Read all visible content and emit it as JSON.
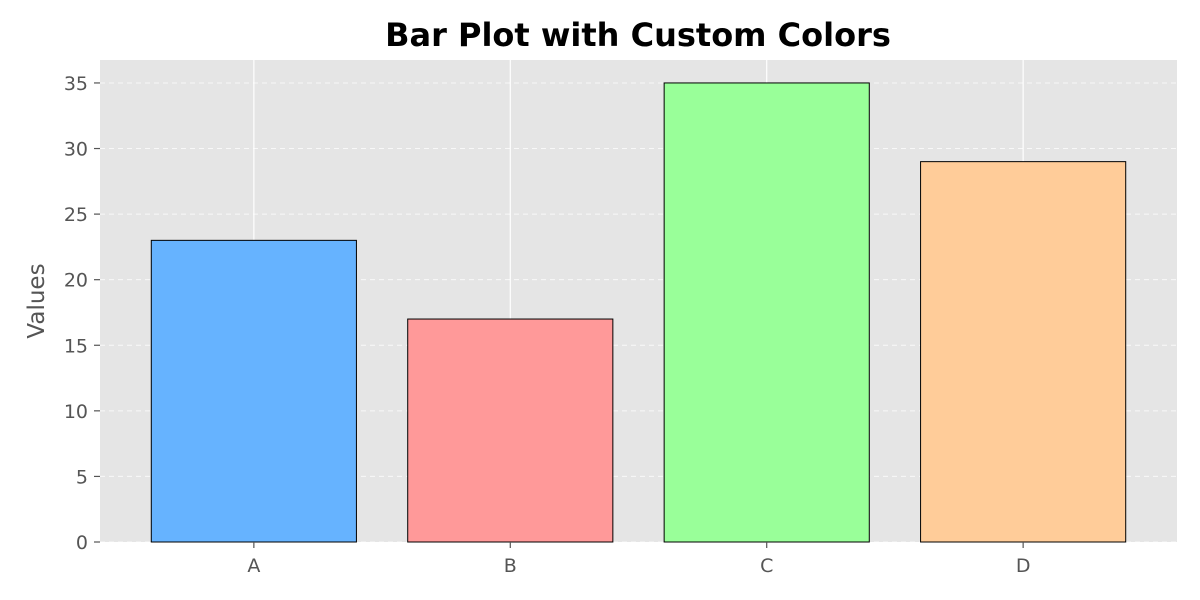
{
  "chart_data": {
    "type": "bar",
    "title": "Bar Plot with Custom Colors",
    "xlabel": "",
    "ylabel": "Values",
    "categories": [
      "A",
      "B",
      "C",
      "D"
    ],
    "values": [
      23,
      17,
      35,
      29
    ],
    "colors": [
      "#66b3ff",
      "#ff9999",
      "#99ff99",
      "#ffcc99"
    ],
    "ylim": [
      0,
      36.75
    ],
    "yticks": [
      0,
      5,
      10,
      15,
      20,
      25,
      30,
      35
    ],
    "grid": {
      "y": "dashed",
      "x": "solid"
    },
    "plot_background": "#e5e5e5",
    "bar_edge_color": "#000000"
  }
}
